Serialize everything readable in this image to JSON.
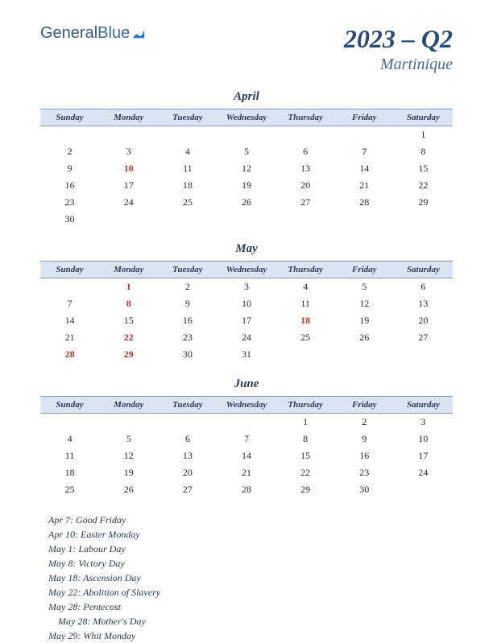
{
  "logo": {
    "part1": "General",
    "part2": "Blue"
  },
  "title": {
    "quarter": "2023 – Q2",
    "region": "Martinique"
  },
  "dayHeaders": [
    "Sunday",
    "Monday",
    "Tuesday",
    "Wednesday",
    "Thursday",
    "Friday",
    "Saturday"
  ],
  "months": [
    {
      "name": "April",
      "startDay": 6,
      "numDays": 30,
      "holidays": [
        7,
        10
      ]
    },
    {
      "name": "May",
      "startDay": 1,
      "numDays": 31,
      "holidays": [
        1,
        8,
        18,
        22,
        28,
        29
      ]
    },
    {
      "name": "June",
      "startDay": 4,
      "numDays": 30,
      "holidays": []
    }
  ],
  "holidayList": [
    {
      "text": "Apr 7: Good Friday",
      "indent": false
    },
    {
      "text": "Apr 10: Easter Monday",
      "indent": false
    },
    {
      "text": "May 1: Labour Day",
      "indent": false
    },
    {
      "text": "May 8: Victory Day",
      "indent": false
    },
    {
      "text": "May 18: Ascension Day",
      "indent": false
    },
    {
      "text": "May 22: Abolition of Slavery",
      "indent": false
    },
    {
      "text": "May 28: Pentecost",
      "indent": false
    },
    {
      "text": "May 28: Mother's Day",
      "indent": true
    },
    {
      "text": "May 29: Whit Monday",
      "indent": false
    }
  ],
  "colors": {
    "headerBg": "#dae4f2",
    "headerBorder": "#8a9ab8",
    "titleColor": "#2a4a7a",
    "regionColor": "#4a6a9a",
    "textColor": "#2a2a2a",
    "holidayColor": "#c03030"
  }
}
